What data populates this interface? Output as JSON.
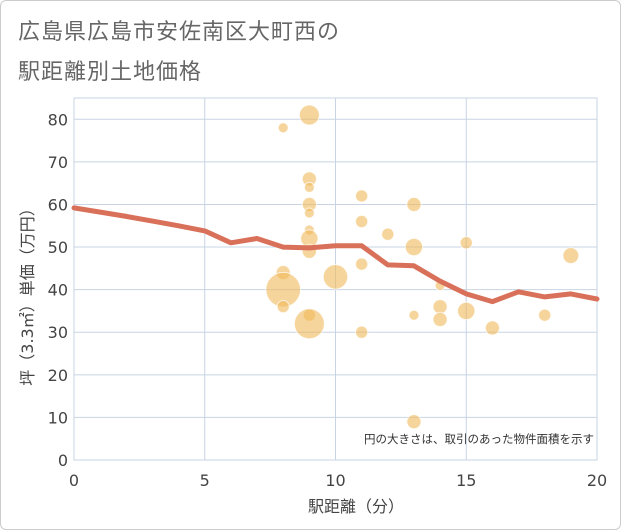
{
  "chart_data": {
    "type": "scatter",
    "title_line1": "広島県広島市安佐南区大町西の",
    "title_line2": "駅距離別土地価格",
    "xlabel": "駅距離（分）",
    "ylabel": "坪（3.3㎡）単価（万円）",
    "xlim": [
      0,
      20
    ],
    "ylim": [
      0,
      85
    ],
    "x_ticks": [
      0,
      5,
      10,
      15,
      20
    ],
    "y_ticks": [
      0,
      10,
      20,
      30,
      40,
      50,
      60,
      70,
      80
    ],
    "grid": true,
    "note": "円の大きさは、取引のあった物件面積を示す",
    "colors": {
      "bubble": "#f0b95a",
      "line": "#d9705a",
      "grid": "#c8d4e3"
    },
    "points": [
      {
        "x": 8,
        "y": 78,
        "size": 1
      },
      {
        "x": 9,
        "y": 81,
        "size": 4
      },
      {
        "x": 9,
        "y": 66,
        "size": 2
      },
      {
        "x": 9,
        "y": 64,
        "size": 1
      },
      {
        "x": 9,
        "y": 60,
        "size": 2
      },
      {
        "x": 9,
        "y": 58,
        "size": 1
      },
      {
        "x": 9,
        "y": 54,
        "size": 1
      },
      {
        "x": 9,
        "y": 52,
        "size": 3
      },
      {
        "x": 9,
        "y": 49,
        "size": 2
      },
      {
        "x": 8,
        "y": 44,
        "size": 2
      },
      {
        "x": 8,
        "y": 40,
        "size": 12
      },
      {
        "x": 8,
        "y": 36,
        "size": 1.5
      },
      {
        "x": 9,
        "y": 34,
        "size": 1.5
      },
      {
        "x": 9,
        "y": 32,
        "size": 9
      },
      {
        "x": 10,
        "y": 43,
        "size": 6
      },
      {
        "x": 11,
        "y": 62,
        "size": 1.5
      },
      {
        "x": 11,
        "y": 56,
        "size": 1.5
      },
      {
        "x": 11,
        "y": 46,
        "size": 1.5
      },
      {
        "x": 11,
        "y": 30,
        "size": 1.5
      },
      {
        "x": 12,
        "y": 53,
        "size": 1.5
      },
      {
        "x": 13,
        "y": 60,
        "size": 2
      },
      {
        "x": 13,
        "y": 50,
        "size": 3
      },
      {
        "x": 13,
        "y": 34,
        "size": 1
      },
      {
        "x": 13,
        "y": 9,
        "size": 2
      },
      {
        "x": 14,
        "y": 41,
        "size": 1
      },
      {
        "x": 14,
        "y": 36,
        "size": 2
      },
      {
        "x": 14,
        "y": 33,
        "size": 2
      },
      {
        "x": 15,
        "y": 51,
        "size": 1.5
      },
      {
        "x": 15,
        "y": 35,
        "size": 3
      },
      {
        "x": 16,
        "y": 31,
        "size": 2
      },
      {
        "x": 18,
        "y": 34,
        "size": 1.5
      },
      {
        "x": 19,
        "y": 48,
        "size": 2.5
      }
    ],
    "trend": {
      "x": [
        0,
        1,
        2,
        3,
        4,
        5,
        6,
        7,
        8,
        9,
        10,
        11,
        12,
        13,
        14,
        15,
        16,
        17,
        18,
        19,
        20
      ],
      "y": [
        59.2,
        58.2,
        57.2,
        56.1,
        55.0,
        53.8,
        51.0,
        52.0,
        50.0,
        49.8,
        50.3,
        50.3,
        45.8,
        45.6,
        42.0,
        39.0,
        37.2,
        39.5,
        38.3,
        39.0,
        37.8
      ]
    }
  }
}
